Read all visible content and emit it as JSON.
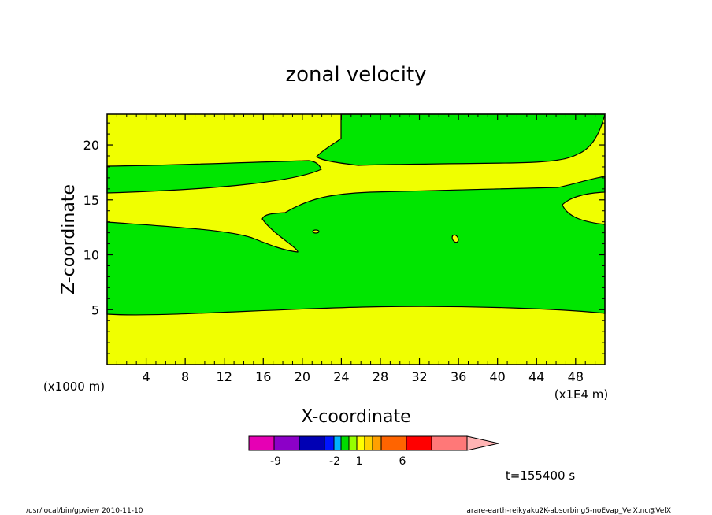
{
  "chart_data": {
    "type": "heatmap",
    "title": "zonal velocity",
    "xlabel": "X-coordinate",
    "ylabel": "Z-coordinate",
    "x_unit_label": "(x1E4 m)",
    "y_unit_label": "(x1000 m)",
    "xlim": [
      0,
      51
    ],
    "ylim": [
      0,
      22.8
    ],
    "x_ticks": [
      4,
      8,
      12,
      16,
      20,
      24,
      28,
      32,
      36,
      40,
      44,
      48
    ],
    "x_tick_labels": [
      "4",
      "8",
      "12",
      "16",
      "20",
      "24",
      "28",
      "32",
      "36",
      "40",
      "44",
      "48"
    ],
    "y_ticks": [
      5,
      10,
      15,
      20
    ],
    "y_tick_labels": [
      "5",
      "10",
      "15",
      "20"
    ],
    "time_label": "t=155400 s",
    "colors": {
      "yellow_band": "#f0ff00",
      "green_band": "#00e600"
    },
    "colorbar": {
      "colors": [
        "#e600b4",
        "#8c00c8",
        "#0000b4",
        "#0014ff",
        "#00b4ff",
        "#00dc00",
        "#96ff00",
        "#ffff00",
        "#ffd200",
        "#ffa000",
        "#ff6400",
        "#ff0000",
        "#ff7878",
        "#ffb4b4"
      ],
      "tick_labels": [
        "-9",
        "-2",
        "1",
        "6"
      ]
    },
    "regions": [
      {
        "name": "upper-left green band",
        "value_band": "green"
      },
      {
        "name": "main green body",
        "value_band": "green"
      },
      {
        "name": "upper-right green region",
        "value_band": "green"
      },
      {
        "name": "small green patch",
        "value_band": "green"
      },
      {
        "name": "top-right green corner",
        "value_band": "green"
      },
      {
        "name": "small yellow blob near x=21,z=12",
        "value_band": "yellow"
      },
      {
        "name": "small yellow blob near x=36,z=11.3",
        "value_band": "yellow"
      }
    ]
  },
  "footer": {
    "left": "/usr/local/bin/gpview   2010-11-10",
    "right": "arare-earth-reikyaku2K-absorbing5-noEvap_VelX.nc@VelX"
  }
}
